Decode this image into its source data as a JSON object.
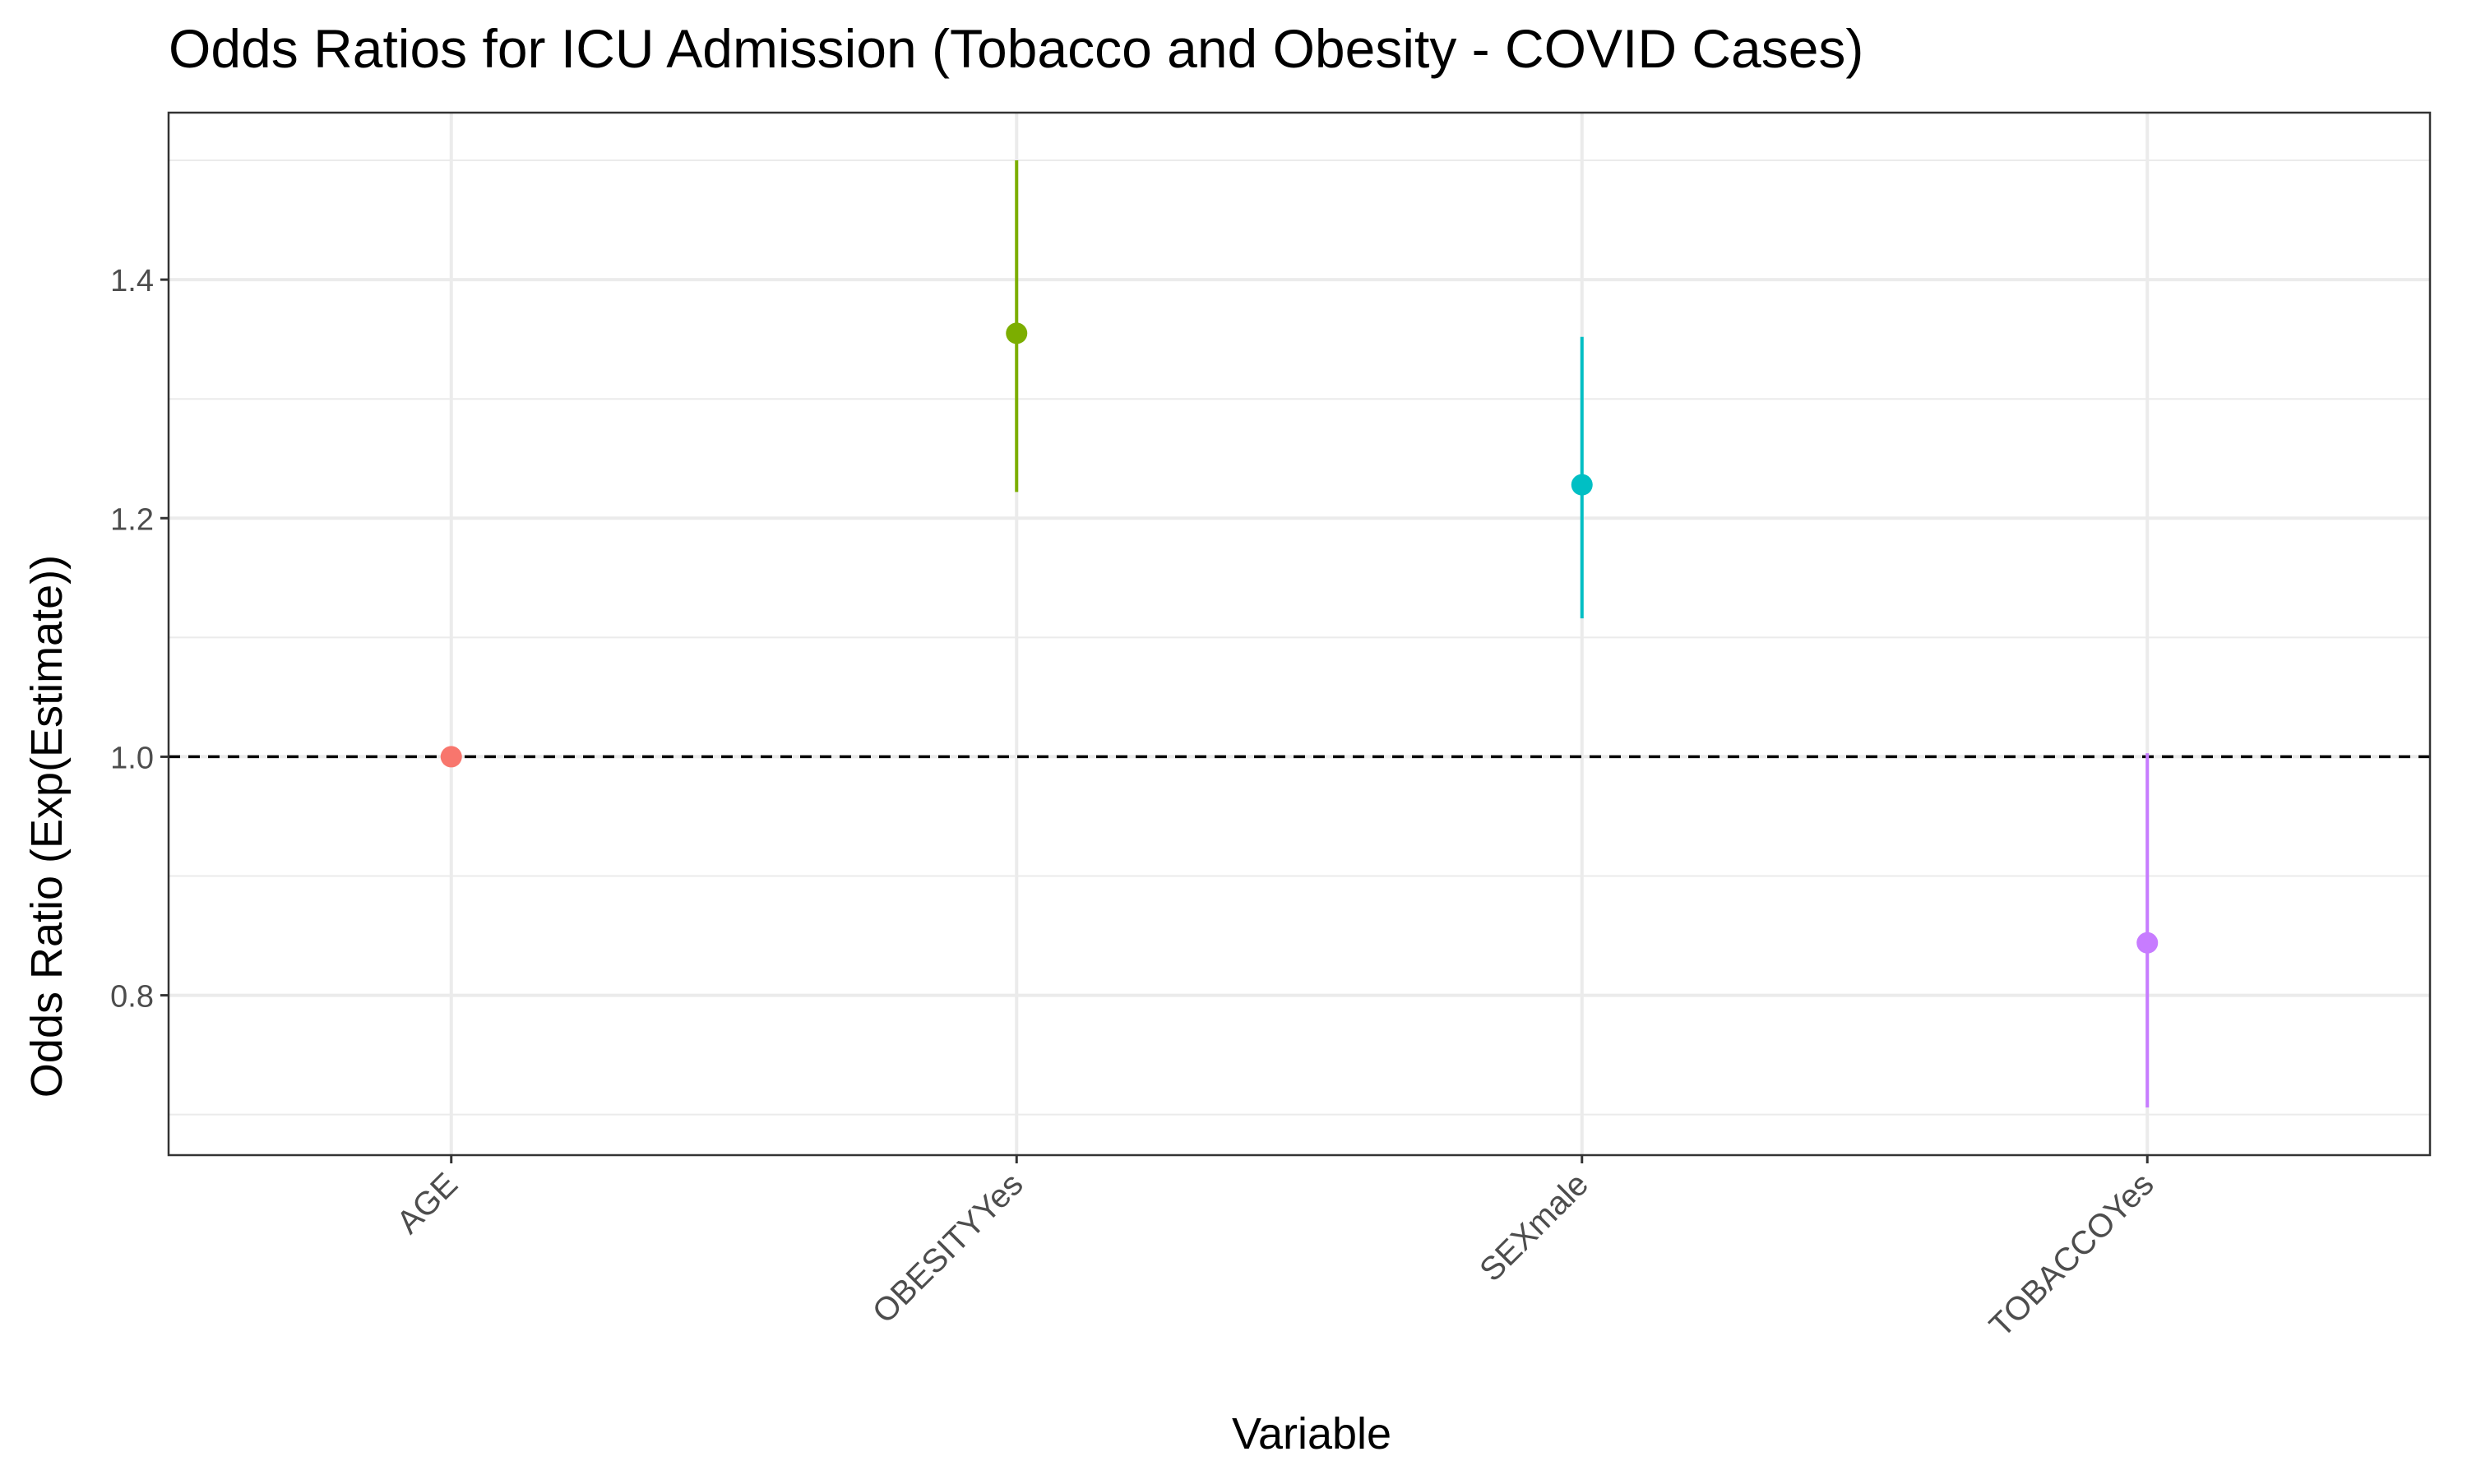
{
  "chart_data": {
    "type": "scatter",
    "subtype": "point-range",
    "title": "Odds Ratios for ICU Admission (Tobacco and Obesity - COVID Cases)",
    "xlabel": "Variable",
    "ylabel": "Odds Ratio (Exp(Estimate))",
    "categories": [
      "AGE",
      "OBESITYYes",
      "SEXmale",
      "TOBACCOYes"
    ],
    "points": [
      {
        "category": "AGE",
        "estimate": 1.0,
        "lower": 0.999,
        "upper": 1.001,
        "color": "#F8766D"
      },
      {
        "category": "OBESITYYes",
        "estimate": 1.355,
        "lower": 1.222,
        "upper": 1.5,
        "color": "#7CAE00"
      },
      {
        "category": "SEXmale",
        "estimate": 1.228,
        "lower": 1.116,
        "upper": 1.352,
        "color": "#00BFC4"
      },
      {
        "category": "TOBACCOYes",
        "estimate": 0.844,
        "lower": 0.706,
        "upper": 1.003,
        "color": "#C77CFF"
      }
    ],
    "yticks": [
      0.8,
      1.0,
      1.2,
      1.4
    ],
    "ytick_labels": [
      "0.8",
      "1.0",
      "1.2",
      "1.4"
    ],
    "ylim": [
      0.666,
      1.54
    ],
    "reference_line": {
      "y": 1.0,
      "style": "dashed"
    },
    "grid": true,
    "legend": "none",
    "x_tick_rotation_deg": -45
  }
}
